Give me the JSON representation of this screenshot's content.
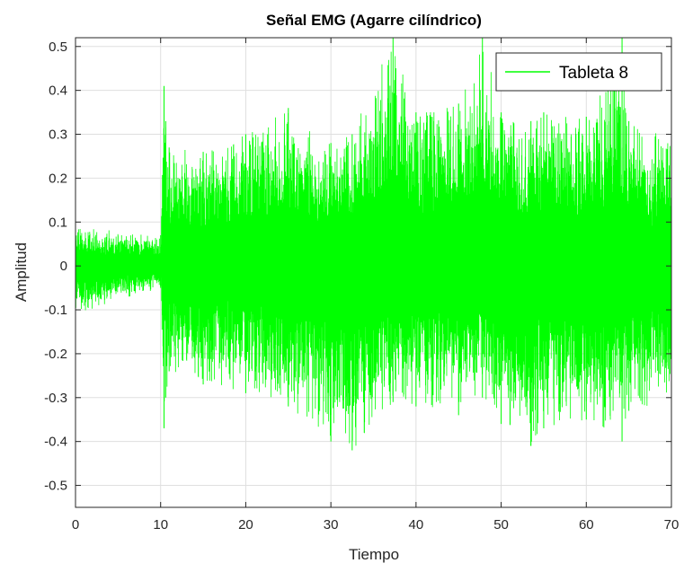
{
  "chart_data": {
    "type": "line",
    "title": "Señal EMG (Agarre cilíndrico)",
    "xlabel": "Tiempo",
    "ylabel": "Amplitud",
    "xlim": [
      0,
      70
    ],
    "ylim": [
      -0.55,
      0.52
    ],
    "xticks": [
      0,
      10,
      20,
      30,
      40,
      50,
      60,
      70
    ],
    "xtick_labels": [
      "0",
      "10",
      "20",
      "30",
      "40",
      "50",
      "60",
      "70"
    ],
    "yticks": [
      0.5,
      0.4,
      0.3,
      0.2,
      0.1,
      0,
      -0.1,
      -0.2,
      -0.3,
      -0.4,
      -0.5
    ],
    "ytick_labels": [
      "0.5",
      "0.4",
      "0.3",
      "0.2",
      "0.1",
      "0",
      "-0.1",
      "-0.2",
      "-0.3",
      "-0.4",
      "-0.5"
    ],
    "grid": true,
    "legend_position": "top-right",
    "series": [
      {
        "name": "Tableta 8",
        "color": "#00ff00",
        "x": [
          0,
          10,
          10.4,
          10.6,
          11,
          15,
          20,
          25,
          30,
          32.5,
          37.3,
          40,
          45,
          47.8,
          50,
          53.5,
          55,
          60,
          64.2,
          65,
          70
        ],
        "y_upper": [
          0.09,
          0.07,
          0.41,
          0.33,
          0.27,
          0.26,
          0.3,
          0.36,
          0.28,
          0.3,
          0.52,
          0.35,
          0.37,
          0.52,
          0.35,
          0.33,
          0.35,
          0.34,
          0.52,
          0.33,
          0.29
        ],
        "y_lower": [
          -0.11,
          -0.05,
          -0.37,
          -0.3,
          -0.24,
          -0.27,
          -0.29,
          -0.32,
          -0.4,
          -0.42,
          -0.31,
          -0.32,
          -0.34,
          -0.3,
          -0.36,
          -0.41,
          -0.37,
          -0.35,
          -0.4,
          -0.33,
          -0.31
        ]
      }
    ]
  }
}
